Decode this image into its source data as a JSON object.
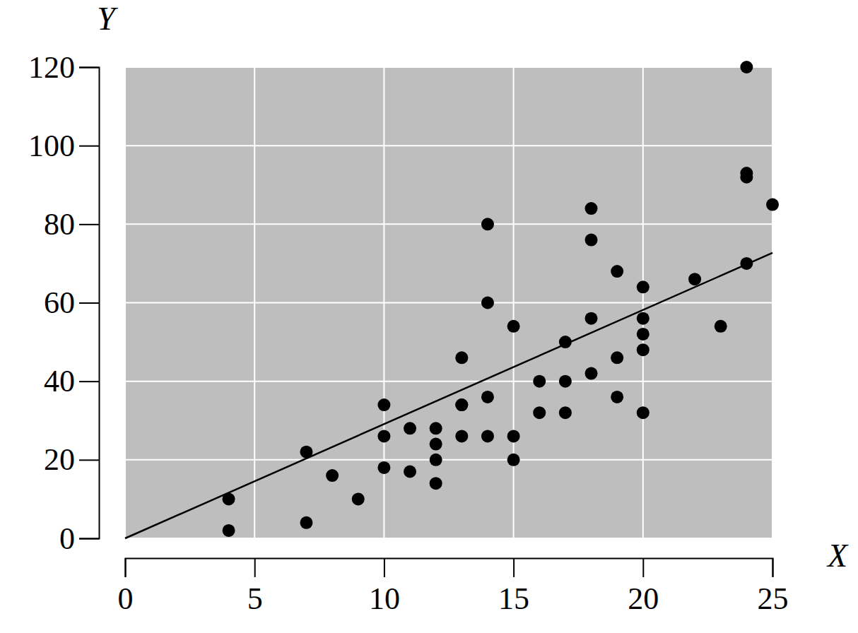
{
  "chart_data": {
    "type": "scatter",
    "x_label": "X",
    "y_label": "Y",
    "xlim": [
      0,
      25
    ],
    "ylim": [
      0,
      120
    ],
    "xticks": [
      0,
      5,
      10,
      15,
      20,
      25
    ],
    "yticks": [
      0,
      20,
      40,
      60,
      80,
      100,
      120
    ],
    "grid": true,
    "series": [
      {
        "type": "scatter",
        "marker": "circle",
        "color": "#000000",
        "x": [
          4,
          4,
          7,
          7,
          8,
          9,
          10,
          10,
          10,
          11,
          11,
          12,
          12,
          12,
          12,
          13,
          13,
          13,
          13,
          14,
          14,
          14,
          14,
          15,
          15,
          15,
          16,
          16,
          17,
          17,
          17,
          18,
          18,
          18,
          18,
          19,
          19,
          19,
          20,
          20,
          20,
          20,
          20,
          22,
          23,
          24,
          24,
          24,
          24,
          25
        ],
        "values": [
          2,
          10,
          4,
          22,
          16,
          10,
          18,
          26,
          34,
          17,
          28,
          14,
          20,
          24,
          28,
          26,
          34,
          34,
          46,
          26,
          36,
          60,
          80,
          20,
          26,
          54,
          32,
          40,
          32,
          40,
          50,
          42,
          56,
          76,
          84,
          36,
          46,
          68,
          32,
          48,
          52,
          56,
          64,
          66,
          54,
          70,
          92,
          93,
          120,
          85
        ]
      },
      {
        "type": "line",
        "line_style": "solid",
        "color": "#000000",
        "x": [
          0,
          25
        ],
        "values": [
          0,
          72.7
        ]
      }
    ]
  }
}
